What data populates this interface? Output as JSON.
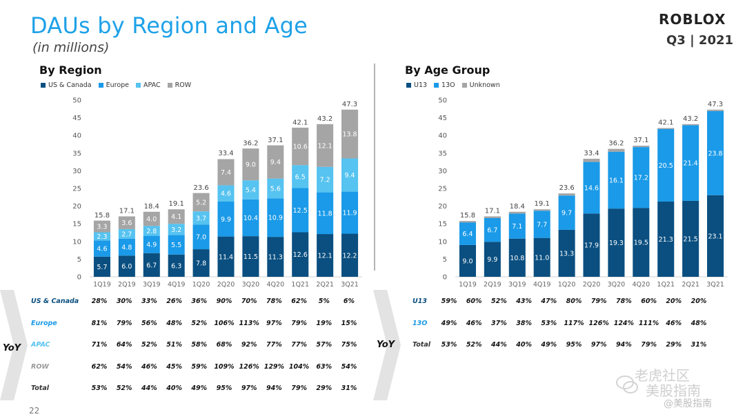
{
  "header": {
    "title": "DAUs by Region and Age",
    "subtitle": "(in millions)",
    "logo": "ROBLOX",
    "quarter": "Q3 | 2021"
  },
  "page_number": "22",
  "watermark": {
    "line1": "老虎社区",
    "line2": "美股指南",
    "line3": "@美股指南"
  },
  "colors": {
    "title": "#1ea1e8",
    "us_canada": "#0a4f80",
    "europe": "#1a9ae8",
    "apac": "#56c3f0",
    "row": "#a5a5a5",
    "u13": "#0a4f80",
    "o13": "#1a9ae8",
    "unknown": "#a5a5a5",
    "europe_label": "#1a9ae8",
    "apac_label": "#56c3f0",
    "row_label": "#9a9a9a"
  },
  "chart_data": [
    {
      "type": "bar",
      "stacked": true,
      "title": "By Region",
      "categories": [
        "1Q19",
        "2Q19",
        "3Q19",
        "4Q19",
        "1Q20",
        "2Q20",
        "3Q20",
        "4Q20",
        "1Q21",
        "2Q21",
        "3Q21"
      ],
      "ylim": [
        0,
        50
      ],
      "yticks": [
        0,
        5,
        10,
        15,
        20,
        25,
        30,
        35,
        40,
        45,
        50
      ],
      "legend_position": "top-left",
      "series": [
        {
          "name": "US & Canada",
          "color": "#0a4f80",
          "values": [
            5.7,
            6.0,
            6.7,
            6.3,
            7.8,
            11.4,
            11.5,
            11.3,
            12.6,
            12.1,
            12.2
          ]
        },
        {
          "name": "Europe",
          "color": "#1a9ae8",
          "values": [
            4.6,
            4.8,
            4.9,
            5.5,
            7.0,
            9.9,
            10.4,
            10.9,
            12.5,
            11.8,
            11.9
          ]
        },
        {
          "name": "APAC",
          "color": "#56c3f0",
          "values": [
            2.3,
            2.7,
            2.8,
            3.2,
            3.7,
            4.6,
            5.4,
            5.6,
            6.5,
            7.2,
            9.4
          ]
        },
        {
          "name": "ROW",
          "color": "#a5a5a5",
          "values": [
            3.3,
            3.6,
            4.0,
            4.1,
            5.2,
            7.4,
            9.0,
            9.4,
            10.6,
            12.1,
            13.8
          ]
        }
      ],
      "totals": [
        15.8,
        17.1,
        18.4,
        19.1,
        23.6,
        33.4,
        36.2,
        37.1,
        42.1,
        43.2,
        47.3
      ]
    },
    {
      "type": "bar",
      "stacked": true,
      "title": "By Age Group",
      "categories": [
        "1Q19",
        "2Q19",
        "3Q19",
        "4Q19",
        "1Q20",
        "2Q20",
        "3Q20",
        "4Q20",
        "1Q21",
        "2Q21",
        "3Q21"
      ],
      "ylim": [
        0,
        50
      ],
      "yticks": [
        0,
        5,
        10,
        15,
        20,
        25,
        30,
        35,
        40,
        45,
        50
      ],
      "legend_position": "top-left",
      "series": [
        {
          "name": "U13",
          "color": "#0a4f80",
          "values": [
            9.0,
            9.9,
            10.8,
            11.0,
            13.3,
            17.9,
            19.3,
            19.5,
            21.3,
            21.5,
            23.1
          ]
        },
        {
          "name": "13O",
          "color": "#1a9ae8",
          "values": [
            6.4,
            6.7,
            7.1,
            7.7,
            9.7,
            14.6,
            16.1,
            17.2,
            20.5,
            21.4,
            23.8
          ]
        },
        {
          "name": "Unknown",
          "color": "#a5a5a5",
          "values": [
            0.4,
            0.5,
            0.5,
            0.4,
            0.6,
            0.9,
            0.8,
            0.4,
            0.3,
            0.3,
            0.4
          ]
        }
      ],
      "totals": [
        15.8,
        17.1,
        18.4,
        19.1,
        23.6,
        33.4,
        36.2,
        37.1,
        42.1,
        43.2,
        47.3
      ]
    }
  ],
  "yoy": {
    "label": "YoY",
    "region": [
      {
        "label": "US & Canada",
        "color_key": "us_canada",
        "values": [
          "28%",
          "30%",
          "33%",
          "26%",
          "36%",
          "90%",
          "70%",
          "78%",
          "62%",
          "5%",
          "6%"
        ]
      },
      {
        "label": "Europe",
        "color_key": "europe_label",
        "values": [
          "81%",
          "79%",
          "56%",
          "48%",
          "52%",
          "106%",
          "113%",
          "97%",
          "79%",
          "19%",
          "15%"
        ]
      },
      {
        "label": "APAC",
        "color_key": "apac_label",
        "values": [
          "71%",
          "64%",
          "52%",
          "51%",
          "58%",
          "68%",
          "92%",
          "77%",
          "77%",
          "57%",
          "75%"
        ]
      },
      {
        "label": "ROW",
        "color_key": "row_label",
        "values": [
          "62%",
          "54%",
          "46%",
          "45%",
          "59%",
          "109%",
          "126%",
          "129%",
          "104%",
          "63%",
          "54%"
        ]
      },
      {
        "label": "Total",
        "color_key": "total",
        "values": [
          "53%",
          "52%",
          "44%",
          "40%",
          "49%",
          "95%",
          "97%",
          "94%",
          "79%",
          "29%",
          "31%"
        ]
      }
    ],
    "age": [
      {
        "label": "U13",
        "color_key": "u13",
        "values": [
          "59%",
          "60%",
          "52%",
          "43%",
          "47%",
          "80%",
          "79%",
          "78%",
          "60%",
          "20%",
          "20%"
        ]
      },
      {
        "label": "13O",
        "color_key": "o13",
        "values": [
          "49%",
          "46%",
          "37%",
          "38%",
          "53%",
          "117%",
          "126%",
          "124%",
          "111%",
          "46%",
          "48%"
        ]
      },
      {
        "label": "Total",
        "color_key": "total",
        "values": [
          "53%",
          "52%",
          "44%",
          "40%",
          "49%",
          "95%",
          "97%",
          "94%",
          "79%",
          "29%",
          "31%"
        ]
      }
    ]
  }
}
